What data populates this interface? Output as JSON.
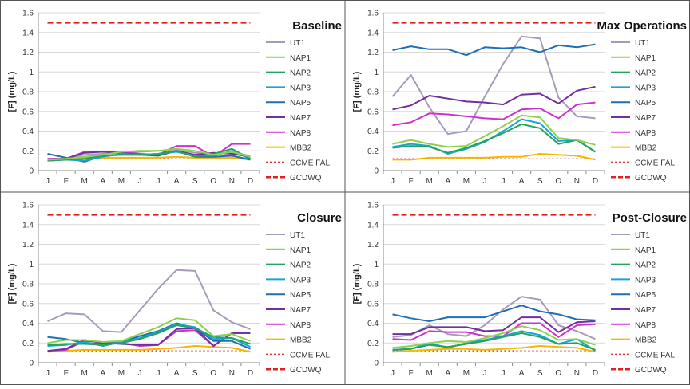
{
  "colors": {
    "UT1": "#a89bb8",
    "NAP1": "#8fd14f",
    "NAP2": "#22a45a",
    "NAP3": "#1aa3d9",
    "NAP5": "#1f6fb2",
    "NAP7": "#7030a0",
    "NAP8": "#cc33cc",
    "MBB2": "#f5b800",
    "CCME FAL": "#e53935",
    "GCDWQ": "#e01f1f"
  },
  "chart_data": [
    {
      "type": "line",
      "title": "Baseline",
      "ylabel": "[F] (mg/L)",
      "ylim": [
        0,
        1.6
      ],
      "yticks": [
        "0",
        "0.2",
        "0.4",
        "0.6",
        "0.8",
        "1",
        "1.2",
        "1.4",
        "1.6"
      ],
      "categories": [
        "J",
        "F",
        "M",
        "A",
        "M",
        "J",
        "J",
        "A",
        "S",
        "O",
        "N",
        "D"
      ],
      "legend_position": "right",
      "series": [
        {
          "name": "UT1",
          "values": [
            0.12,
            0.12,
            0.16,
            0.17,
            0.18,
            0.19,
            0.2,
            0.21,
            0.18,
            0.17,
            0.18,
            0.15
          ]
        },
        {
          "name": "NAP1",
          "values": [
            0.11,
            0.12,
            0.14,
            0.16,
            0.19,
            0.2,
            0.2,
            0.22,
            0.2,
            0.16,
            0.19,
            0.14
          ]
        },
        {
          "name": "NAP2",
          "values": [
            0.1,
            0.11,
            0.12,
            0.15,
            0.16,
            0.16,
            0.16,
            0.2,
            0.14,
            0.17,
            0.22,
            0.12
          ]
        },
        {
          "name": "NAP3",
          "values": [
            0.1,
            0.11,
            0.1,
            0.14,
            0.17,
            0.16,
            0.17,
            0.19,
            0.15,
            0.15,
            0.2,
            0.12
          ]
        },
        {
          "name": "NAP5",
          "values": [
            0.17,
            0.13,
            0.09,
            0.15,
            0.16,
            0.16,
            0.17,
            0.2,
            0.14,
            0.14,
            0.15,
            0.11
          ]
        },
        {
          "name": "NAP7",
          "values": [
            0.11,
            0.12,
            0.18,
            0.19,
            0.18,
            0.16,
            0.15,
            0.2,
            0.16,
            0.18,
            0.17,
            0.14
          ]
        },
        {
          "name": "NAP8",
          "values": [
            0.12,
            0.12,
            0.19,
            0.19,
            0.19,
            0.17,
            0.16,
            0.25,
            0.25,
            0.14,
            0.27,
            0.27
          ]
        },
        {
          "name": "MBB2",
          "values": [
            0.12,
            0.12,
            0.13,
            0.13,
            0.13,
            0.13,
            0.13,
            0.14,
            0.13,
            0.13,
            0.13,
            0.11
          ]
        },
        {
          "name": "CCME FAL",
          "values": [
            0.12,
            0.12,
            0.12,
            0.12,
            0.12,
            0.12,
            0.12,
            0.12,
            0.12,
            0.12,
            0.12,
            0.12
          ]
        },
        {
          "name": "GCDWQ",
          "values": [
            1.5,
            1.5,
            1.5,
            1.5,
            1.5,
            1.5,
            1.5,
            1.5,
            1.5,
            1.5,
            1.5,
            1.5
          ]
        }
      ]
    },
    {
      "type": "line",
      "title": "Max Operations",
      "ylabel": "[F] (mg/L)",
      "ylim": [
        0,
        1.6
      ],
      "yticks": [
        "0",
        "0.2",
        "0.4",
        "0.6",
        "0.8",
        "1",
        "1.2",
        "1.4",
        "1.6"
      ],
      "categories": [
        "J",
        "F",
        "M",
        "A",
        "M",
        "J",
        "J",
        "A",
        "S",
        "O",
        "N",
        "D"
      ],
      "legend_position": "right",
      "series": [
        {
          "name": "UT1",
          "values": [
            0.75,
            0.97,
            0.64,
            0.37,
            0.4,
            0.75,
            1.08,
            1.36,
            1.34,
            0.74,
            0.55,
            0.53
          ]
        },
        {
          "name": "NAP1",
          "values": [
            0.27,
            0.31,
            0.27,
            0.24,
            0.25,
            0.35,
            0.45,
            0.56,
            0.54,
            0.33,
            0.31,
            0.26
          ]
        },
        {
          "name": "NAP2",
          "values": [
            0.23,
            0.25,
            0.24,
            0.18,
            0.23,
            0.3,
            0.38,
            0.47,
            0.43,
            0.27,
            0.31,
            0.19
          ]
        },
        {
          "name": "NAP3",
          "values": [
            0.24,
            0.27,
            0.25,
            0.17,
            0.22,
            0.29,
            0.4,
            0.52,
            0.48,
            0.3,
            0.31,
            0.19
          ]
        },
        {
          "name": "NAP5",
          "values": [
            1.22,
            1.26,
            1.23,
            1.23,
            1.17,
            1.25,
            1.24,
            1.25,
            1.2,
            1.27,
            1.25,
            1.28
          ]
        },
        {
          "name": "NAP7",
          "values": [
            0.62,
            0.66,
            0.76,
            0.73,
            0.7,
            0.69,
            0.67,
            0.77,
            0.78,
            0.68,
            0.81,
            0.85
          ]
        },
        {
          "name": "NAP8",
          "values": [
            0.46,
            0.49,
            0.58,
            0.57,
            0.55,
            0.53,
            0.52,
            0.62,
            0.63,
            0.53,
            0.67,
            0.69
          ]
        },
        {
          "name": "MBB2",
          "values": [
            0.11,
            0.11,
            0.13,
            0.13,
            0.13,
            0.13,
            0.14,
            0.14,
            0.17,
            0.16,
            0.15,
            0.11
          ]
        },
        {
          "name": "CCME FAL",
          "values": [
            0.12,
            0.12,
            0.12,
            0.12,
            0.12,
            0.12,
            0.12,
            0.12,
            0.12,
            0.12,
            0.12,
            0.12
          ]
        },
        {
          "name": "GCDWQ",
          "values": [
            1.5,
            1.5,
            1.5,
            1.5,
            1.5,
            1.5,
            1.5,
            1.5,
            1.5,
            1.5,
            1.5,
            1.5
          ]
        }
      ]
    },
    {
      "type": "line",
      "title": "Closure",
      "ylabel": "[F] (mg/L)",
      "ylim": [
        0,
        1.6
      ],
      "yticks": [
        "0",
        "0.2",
        "0.4",
        "0.6",
        "0.8",
        "1",
        "1.2",
        "1.4",
        "1.6"
      ],
      "categories": [
        "J",
        "F",
        "M",
        "A",
        "M",
        "J",
        "J",
        "A",
        "S",
        "O",
        "N",
        "D"
      ],
      "legend_position": "right",
      "series": [
        {
          "name": "UT1",
          "values": [
            0.42,
            0.5,
            0.49,
            0.32,
            0.31,
            0.53,
            0.75,
            0.94,
            0.93,
            0.53,
            0.41,
            0.34
          ]
        },
        {
          "name": "NAP1",
          "values": [
            0.2,
            0.23,
            0.23,
            0.21,
            0.22,
            0.29,
            0.36,
            0.45,
            0.43,
            0.27,
            0.29,
            0.22
          ]
        },
        {
          "name": "NAP2",
          "values": [
            0.18,
            0.19,
            0.19,
            0.18,
            0.2,
            0.24,
            0.3,
            0.38,
            0.35,
            0.26,
            0.25,
            0.19
          ]
        },
        {
          "name": "NAP3",
          "values": [
            0.17,
            0.18,
            0.21,
            0.17,
            0.21,
            0.25,
            0.31,
            0.39,
            0.36,
            0.24,
            0.25,
            0.16
          ]
        },
        {
          "name": "NAP5",
          "values": [
            0.26,
            0.24,
            0.2,
            0.19,
            0.21,
            0.27,
            0.32,
            0.4,
            0.35,
            0.22,
            0.22,
            0.14
          ]
        },
        {
          "name": "NAP7",
          "values": [
            0.12,
            0.14,
            0.23,
            0.2,
            0.19,
            0.18,
            0.18,
            0.34,
            0.35,
            0.17,
            0.3,
            0.3
          ]
        },
        {
          "name": "NAP8",
          "values": [
            0.12,
            0.13,
            0.22,
            0.21,
            0.2,
            0.17,
            0.18,
            0.32,
            0.33,
            0.17,
            0.3,
            0.3
          ]
        },
        {
          "name": "MBB2",
          "values": [
            0.11,
            0.12,
            0.13,
            0.13,
            0.13,
            0.13,
            0.14,
            0.15,
            0.17,
            0.16,
            0.15,
            0.11
          ]
        },
        {
          "name": "CCME FAL",
          "values": [
            0.12,
            0.12,
            0.12,
            0.12,
            0.12,
            0.12,
            0.12,
            0.12,
            0.12,
            0.12,
            0.12,
            0.12
          ]
        },
        {
          "name": "GCDWQ",
          "values": [
            1.5,
            1.5,
            1.5,
            1.5,
            1.5,
            1.5,
            1.5,
            1.5,
            1.5,
            1.5,
            1.5,
            1.5
          ]
        }
      ]
    },
    {
      "type": "line",
      "title": "Post-Closure",
      "ylabel": "[F] (mg/L)",
      "ylim": [
        0,
        1.6
      ],
      "yticks": [
        "0",
        "0.2",
        "0.4",
        "0.6",
        "0.8",
        "1",
        "1.2",
        "1.4",
        "1.6"
      ],
      "categories": [
        "J",
        "F",
        "M",
        "A",
        "M",
        "J",
        "J",
        "A",
        "S",
        "O",
        "N",
        "D"
      ],
      "legend_position": "right",
      "series": [
        {
          "name": "UT1",
          "values": [
            0.26,
            0.28,
            0.38,
            0.29,
            0.27,
            0.38,
            0.54,
            0.67,
            0.64,
            0.38,
            0.32,
            0.24
          ]
        },
        {
          "name": "NAP1",
          "values": [
            0.15,
            0.17,
            0.2,
            0.22,
            0.21,
            0.25,
            0.3,
            0.37,
            0.33,
            0.23,
            0.24,
            0.18
          ]
        },
        {
          "name": "NAP2",
          "values": [
            0.13,
            0.14,
            0.18,
            0.16,
            0.19,
            0.22,
            0.26,
            0.3,
            0.26,
            0.19,
            0.2,
            0.13
          ]
        },
        {
          "name": "NAP3",
          "values": [
            0.13,
            0.14,
            0.2,
            0.15,
            0.2,
            0.23,
            0.27,
            0.32,
            0.28,
            0.19,
            0.24,
            0.12
          ]
        },
        {
          "name": "NAP5",
          "values": [
            0.49,
            0.45,
            0.42,
            0.46,
            0.46,
            0.46,
            0.52,
            0.58,
            0.52,
            0.49,
            0.44,
            0.43
          ]
        },
        {
          "name": "NAP7",
          "values": [
            0.29,
            0.29,
            0.36,
            0.36,
            0.36,
            0.32,
            0.33,
            0.46,
            0.46,
            0.31,
            0.41,
            0.42
          ]
        },
        {
          "name": "NAP8",
          "values": [
            0.24,
            0.23,
            0.32,
            0.31,
            0.31,
            0.27,
            0.27,
            0.4,
            0.4,
            0.26,
            0.38,
            0.39
          ]
        },
        {
          "name": "MBB2",
          "values": [
            0.11,
            0.12,
            0.13,
            0.14,
            0.14,
            0.13,
            0.14,
            0.15,
            0.17,
            0.16,
            0.15,
            0.11
          ]
        },
        {
          "name": "CCME FAL",
          "values": [
            0.12,
            0.12,
            0.12,
            0.12,
            0.12,
            0.12,
            0.12,
            0.12,
            0.12,
            0.12,
            0.12,
            0.12
          ]
        },
        {
          "name": "GCDWQ",
          "values": [
            1.5,
            1.5,
            1.5,
            1.5,
            1.5,
            1.5,
            1.5,
            1.5,
            1.5,
            1.5,
            1.5,
            1.5
          ]
        }
      ]
    }
  ]
}
